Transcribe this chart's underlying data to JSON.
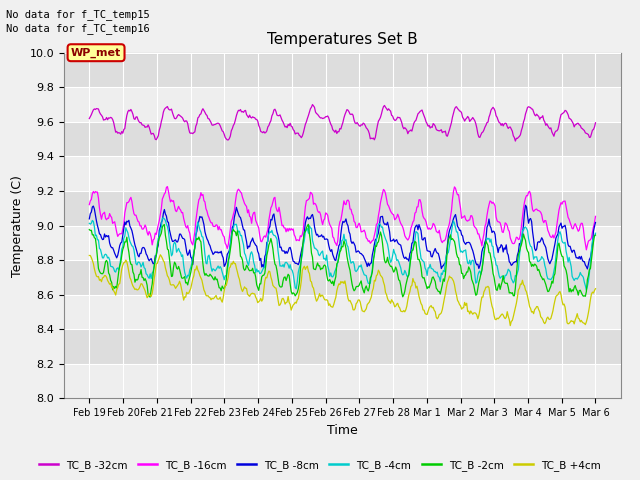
{
  "title": "Temperatures Set B",
  "xlabel": "Time",
  "ylabel": "Temperature (C)",
  "ylim": [
    8.0,
    10.0
  ],
  "yticks": [
    8.0,
    8.2,
    8.4,
    8.6,
    8.8,
    9.0,
    9.2,
    9.4,
    9.6,
    9.8,
    10.0
  ],
  "xtick_labels": [
    "Feb 19",
    "Feb 20",
    "Feb 21",
    "Feb 22",
    "Feb 23",
    "Feb 24",
    "Feb 25",
    "Feb 26",
    "Feb 27",
    "Feb 28",
    "Mar 1",
    "Mar 2",
    "Mar 3",
    "Mar 4",
    "Mar 5",
    "Mar 6"
  ],
  "no_data_text1": "No data for f_TC_temp15",
  "no_data_text2": "No data for f_TC_temp16",
  "wp_met_label": "WP_met",
  "wp_met_color": "#8b0000",
  "wp_met_bg": "#ffff99",
  "series": [
    {
      "label": "TC_B -32cm",
      "color": "#cc00cc",
      "base": 9.6,
      "amplitude": 0.1,
      "freq1": 14,
      "freq2": 28,
      "trend": 0.0,
      "phase": 0.0
    },
    {
      "label": "TC_B -16cm",
      "color": "#ff00ff",
      "base": 9.05,
      "amplitude": 0.18,
      "freq1": 14,
      "freq2": 28,
      "trend": -0.03,
      "phase": 0.3
    },
    {
      "label": "TC_B -8cm",
      "color": "#0000dd",
      "base": 8.92,
      "amplitude": 0.18,
      "freq1": 14,
      "freq2": 28,
      "trend": -0.03,
      "phase": 0.6
    },
    {
      "label": "TC_B -4cm",
      "color": "#00cccc",
      "base": 8.85,
      "amplitude": 0.2,
      "freq1": 14,
      "freq2": 28,
      "trend": -0.05,
      "phase": 0.9
    },
    {
      "label": "TC_B -2cm",
      "color": "#00cc00",
      "base": 8.78,
      "amplitude": 0.2,
      "freq1": 14,
      "freq2": 28,
      "trend": -0.06,
      "phase": 1.2
    },
    {
      "label": "TC_B +4cm",
      "color": "#cccc00",
      "base": 8.7,
      "amplitude": 0.14,
      "freq1": 14,
      "freq2": 28,
      "trend": -0.2,
      "phase": 1.5
    }
  ],
  "n_points": 500,
  "plot_bg_light": "#eeeeee",
  "plot_bg_dark": "#dddddd",
  "grid_color": "#ffffff"
}
